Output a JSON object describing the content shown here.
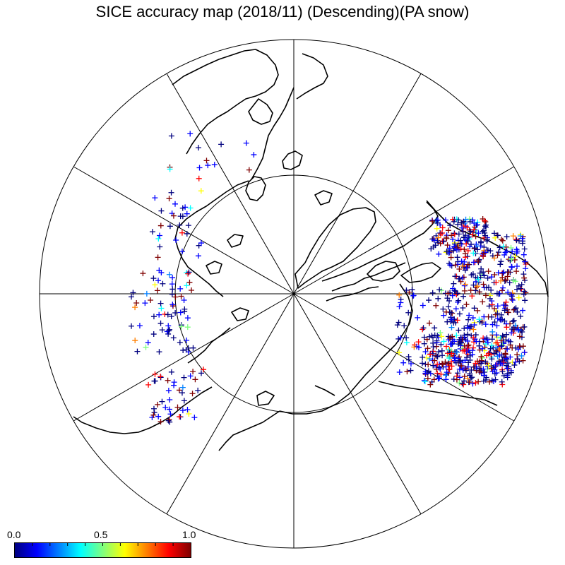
{
  "title": "SICE accuracy map (2018/11) (Descending)(PA snow)",
  "colorbar": {
    "labels": [
      "0.0",
      "0.5",
      "1.0"
    ],
    "range": [
      0.0,
      1.0
    ],
    "colors": [
      "#00007f",
      "#0000ff",
      "#007fff",
      "#00ffff",
      "#7fff7f",
      "#ffff00",
      "#ff7f00",
      "#ff0000",
      "#7f0000"
    ]
  },
  "map": {
    "projection": "polar stereographic (north)",
    "meridian_lines": 12,
    "latitude_circles": 1,
    "marker": "plus",
    "coastline_color": "#000000"
  }
}
